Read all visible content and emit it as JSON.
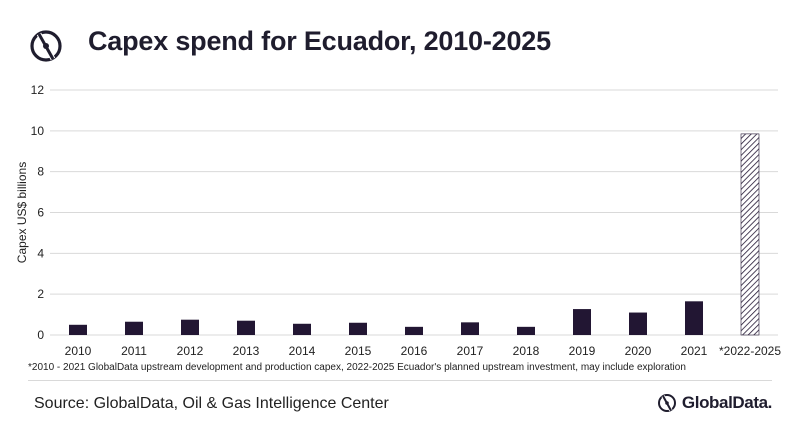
{
  "header": {
    "title": "Capex spend for Ecuador, 2010-2025",
    "logo_icon": "globaldata-icon"
  },
  "chart_data": {
    "type": "bar",
    "title": "Capex spend for Ecuador, 2010-2025",
    "xlabel": "",
    "ylabel": "Capex US$ billions",
    "ylim": [
      0,
      12
    ],
    "yticks": [
      0,
      2,
      4,
      6,
      8,
      10,
      12
    ],
    "grid": true,
    "categories": [
      "2010",
      "2011",
      "2012",
      "2013",
      "2014",
      "2015",
      "2016",
      "2017",
      "2018",
      "2019",
      "2020",
      "2021",
      "*2022-2025"
    ],
    "values": [
      0.5,
      0.65,
      0.75,
      0.7,
      0.55,
      0.6,
      0.4,
      0.62,
      0.4,
      1.27,
      1.1,
      1.65,
      9.85
    ],
    "bar_color": "#221633",
    "hatched_categories": [
      "*2022-2025"
    ]
  },
  "footnote": "*2010 - 2021  GlobalData upstream development and production capex, 2022-2025 Ecuador's planned upstream investment, may include exploration",
  "source": "Source: GlobalData, Oil & Gas Intelligence Center",
  "brand": {
    "name": "GlobalData.",
    "icon": "globaldata-icon"
  }
}
